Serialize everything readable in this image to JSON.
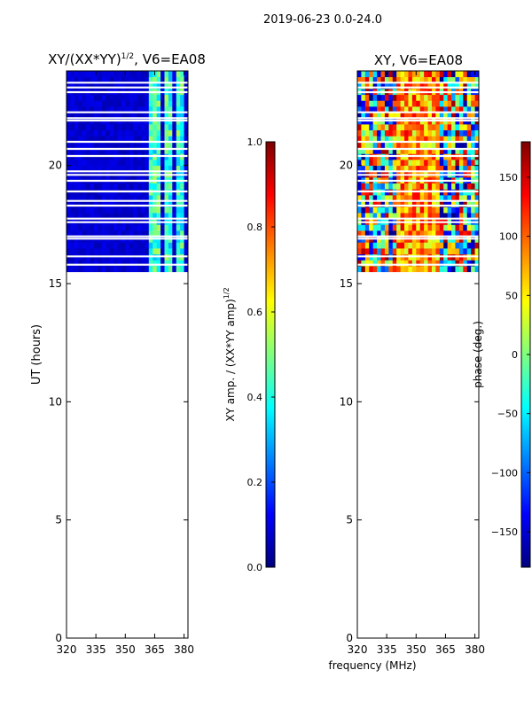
{
  "figure_title": "2019-06-23 0.0-24.0",
  "colors": {
    "jet": [
      "#00007f",
      "#0000ff",
      "#007fff",
      "#00ffff",
      "#7fff7f",
      "#ffff00",
      "#ff7f00",
      "#ff0000",
      "#7f0000"
    ]
  },
  "chart_data": [
    {
      "type": "heatmap",
      "title_main": "XY/(XX*YY)",
      "title_sup": "1/2",
      "title_suffix": ", V6=EA08",
      "xlabel": "",
      "ylabel": "UT (hours)",
      "x_range": [
        320,
        382
      ],
      "y_range": [
        0,
        24
      ],
      "x_ticks": [
        320,
        335,
        350,
        365,
        380
      ],
      "y_ticks": [
        0,
        5,
        10,
        15,
        20
      ],
      "data_coverage_ut": [
        15.5,
        24
      ],
      "gaps_ut": [
        15.8,
        16.15,
        16.9,
        17.0,
        17.6,
        17.75,
        18.3,
        18.5,
        18.9,
        19.35,
        19.6,
        19.75,
        20.4,
        20.7,
        21.0,
        21.9,
        22.0,
        22.25,
        23.1,
        23.3,
        23.5
      ],
      "bright_channels_mhz": [
        [
          362,
          365
        ],
        [
          366,
          368
        ],
        [
          371,
          374
        ],
        [
          376,
          377
        ],
        [
          379,
          380
        ]
      ],
      "colorbar": {
        "label_main": "XY amp. / (XX*YY amp)",
        "label_sup": "1/2",
        "range": [
          0.0,
          1.0
        ],
        "ticks": [
          "0.0",
          "0.2",
          "0.4",
          "0.6",
          "0.8",
          "1.0"
        ],
        "tick_values": [
          0.0,
          0.2,
          0.4,
          0.6,
          0.8,
          1.0
        ]
      }
    },
    {
      "type": "heatmap",
      "title": "XY, V6=EA08",
      "xlabel": "frequency (MHz)",
      "ylabel": "",
      "x_range": [
        320,
        382
      ],
      "y_range": [
        0,
        24
      ],
      "x_ticks": [
        320,
        335,
        350,
        365,
        380
      ],
      "y_ticks": [
        0,
        5,
        10,
        15,
        20
      ],
      "data_coverage_ut": [
        15.5,
        24
      ],
      "colorbar": {
        "label": "phase (deg.)",
        "range": [
          -180,
          180
        ],
        "ticks": [
          "−150",
          "−100",
          "−50",
          "0",
          "50",
          "100",
          "150"
        ],
        "tick_values": [
          -150,
          -100,
          -50,
          0,
          50,
          100,
          150
        ]
      }
    }
  ]
}
